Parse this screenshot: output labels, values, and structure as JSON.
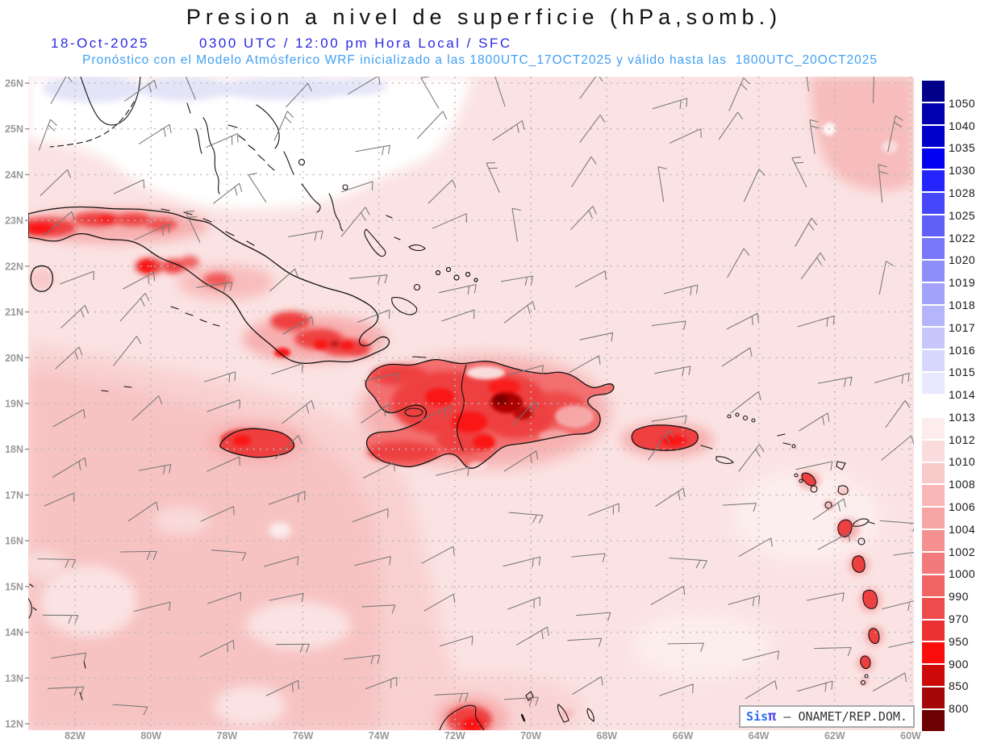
{
  "header": {
    "title": "Presion a nivel de superficie (hPa,somb.)",
    "date": "18-Oct-2025",
    "time_line": "0300 UTC / 12:00 pm Hora Local / SFC",
    "forecast_line": "Pronóstico con el Modelo Atmósferico WRF inicializado a las 1800UTC_17OCT2025 y válido hasta las  1800UTC_20OCT2025"
  },
  "map": {
    "lat_ticks": [
      "26N",
      "25N",
      "24N",
      "23N",
      "22N",
      "21N",
      "20N",
      "19N",
      "18N",
      "17N",
      "16N",
      "15N",
      "14N",
      "13N",
      "12N"
    ],
    "lat_values": [
      26,
      25,
      24,
      23,
      22,
      21,
      20,
      19,
      18,
      17,
      16,
      15,
      14,
      13,
      12
    ],
    "lon_ticks": [
      "82W",
      "80W",
      "78W",
      "76W",
      "74W",
      "72W",
      "70W",
      "68W",
      "66W",
      "64W",
      "62W",
      "60W"
    ],
    "lon_values": [
      82,
      80,
      78,
      76,
      74,
      72,
      70,
      68,
      66,
      64,
      62,
      60
    ],
    "grid_style": "dotted",
    "wind_barbs": {
      "color": "#777777",
      "seed": 11,
      "cols": 12,
      "rows": 14,
      "style": "surface wind barbs, predominantly easterly to northeasterly trades"
    }
  },
  "colorbar": {
    "units": "hPa",
    "labels": [
      "1050",
      "1040",
      "1035",
      "1030",
      "1028",
      "1025",
      "1022",
      "1020",
      "1019",
      "1018",
      "1017",
      "1016",
      "1015",
      "1014",
      "1013",
      "1012",
      "1010",
      "1008",
      "1006",
      "1004",
      "1002",
      "1000",
      "990",
      "970",
      "950",
      "900",
      "850",
      "800"
    ],
    "colors": [
      "#00008b",
      "#0000b1",
      "#0000cd",
      "#0202f2",
      "#2424ff",
      "#4646fb",
      "#6060f9",
      "#7878f8",
      "#8e8efa",
      "#a2a2fb",
      "#b5b5fc",
      "#c7c7fd",
      "#d7d7fe",
      "#e8e8ff",
      "#ffffff",
      "#fcecec",
      "#fbdcdc",
      "#f9caca",
      "#f8b6b6",
      "#f6a4a4",
      "#f49090",
      "#f27a7a",
      "#f06464",
      "#ee4c4c",
      "#ec3232",
      "#fb0d0d",
      "#cd0a0a",
      "#a30707",
      "#6d0000"
    ]
  },
  "credit": {
    "prefix": "Sis",
    "pi": "π",
    "dash": "–",
    "org": "ONAMET/REP.DOM."
  },
  "palette": {
    "title": "#111111",
    "subtitle_blue": "#2a2ae0",
    "forecast_blue": "#3f9ff2",
    "ocean_light": "#fbe3e3",
    "ocean_mid": "#f9d0d0",
    "ocean_deep": "#f7c2c2",
    "ne_patch": "#f7bcbc",
    "white_zone": "#ffffff",
    "lavender": "#e4e4f8",
    "red_halo": "#f7b0b0",
    "red_mid": "#f37070",
    "red": "#ee4040",
    "red_bright": "#fb1616",
    "red_dark": "#ae0404",
    "red_darkest": "#7c0000",
    "coast": "#111111",
    "grid": "#b9b9b9",
    "axis_label": "#999999"
  }
}
